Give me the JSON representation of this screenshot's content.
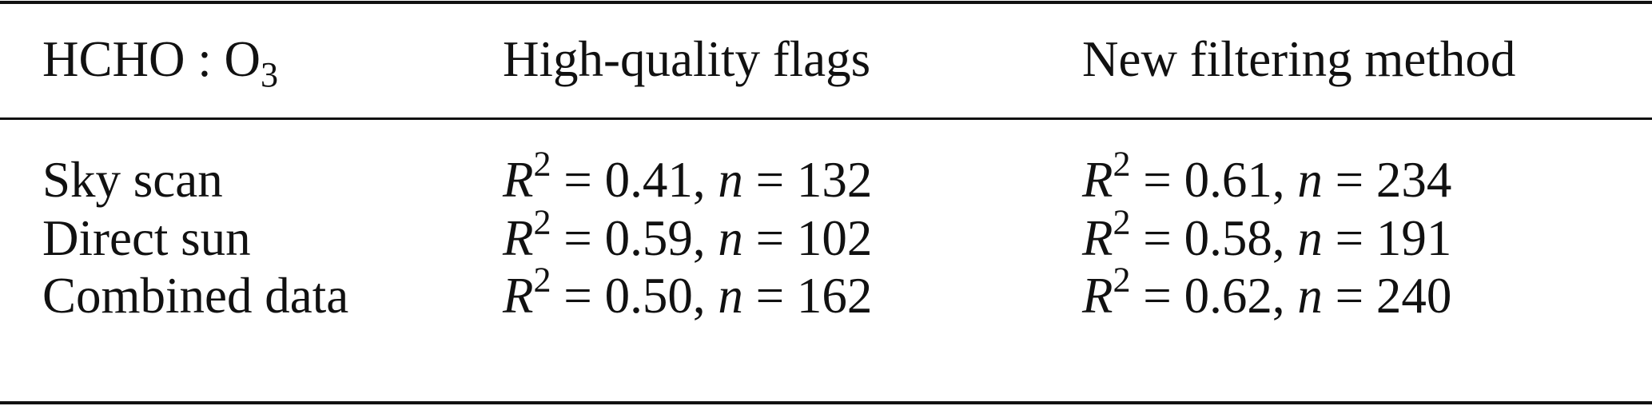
{
  "table": {
    "header": {
      "col0_main": "HCHO : O",
      "col0_sub": "3",
      "col1": "High-quality flags",
      "col2": "New filtering method"
    },
    "rows": [
      {
        "label": "Sky scan",
        "hq": {
          "r2": "0.41",
          "n": "132"
        },
        "nf": {
          "r2": "0.61",
          "n": "234"
        }
      },
      {
        "label": "Direct sun",
        "hq": {
          "r2": "0.59",
          "n": "102"
        },
        "nf": {
          "r2": "0.58",
          "n": "191"
        }
      },
      {
        "label": "Combined data",
        "hq": {
          "r2": "0.50",
          "n": "162"
        },
        "nf": {
          "r2": "0.62",
          "n": "240"
        }
      }
    ],
    "symbols": {
      "R": "R",
      "sq": "2",
      "eq": " = ",
      "n": "n",
      "comma": ", "
    }
  }
}
